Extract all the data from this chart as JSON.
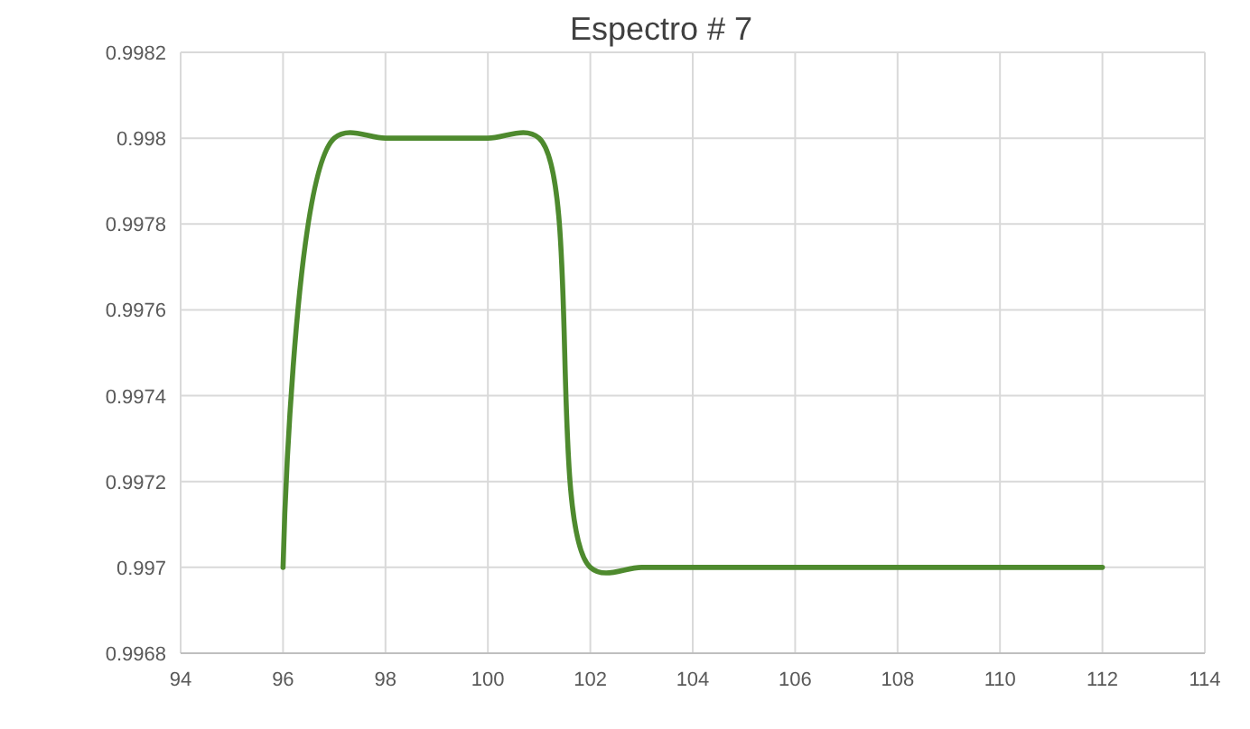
{
  "chart_data": {
    "type": "line",
    "title": "Espectro # 7",
    "x": [
      96,
      97,
      98,
      99,
      100,
      101,
      102,
      103,
      104,
      105,
      106,
      107,
      108,
      109,
      110,
      111,
      112
    ],
    "series": [
      {
        "color": "#4e8a2e",
        "values": [
          0.997,
          0.998,
          0.998,
          0.998,
          0.998,
          0.998,
          0.997,
          0.997,
          0.997,
          0.997,
          0.997,
          0.997,
          0.997,
          0.997,
          0.997,
          0.997,
          0.997
        ]
      }
    ],
    "xlim": [
      94,
      114
    ],
    "xticks": [
      94,
      96,
      98,
      100,
      102,
      104,
      106,
      108,
      110,
      112,
      114
    ],
    "ylim": [
      0.9968,
      0.9982
    ],
    "yticks": [
      {
        "value": 0.9968,
        "label": "0.9968"
      },
      {
        "value": 0.997,
        "label": "0.997"
      },
      {
        "value": 0.9972,
        "label": "0.9972"
      },
      {
        "value": 0.9974,
        "label": "0.9974"
      },
      {
        "value": 0.9976,
        "label": "0.9976"
      },
      {
        "value": 0.9978,
        "label": "0.9978"
      },
      {
        "value": 0.998,
        "label": "0.998"
      },
      {
        "value": 0.9982,
        "label": "0.9982"
      }
    ],
    "grid": true,
    "marker": "none",
    "line_style": "solid"
  }
}
